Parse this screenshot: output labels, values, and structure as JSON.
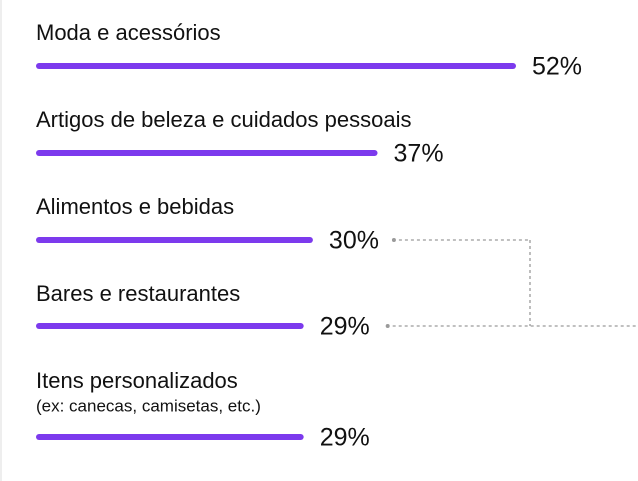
{
  "chart_data": {
    "type": "bar",
    "orientation": "horizontal",
    "categories": [
      "Moda e acessórios",
      "Artigos de beleza e cuidados pessoais",
      "Alimentos e bebidas",
      "Bares e restaurantes",
      "Itens personalizados"
    ],
    "category_notes": [
      "",
      "",
      "",
      "",
      "(ex: canecas, camisetas, etc.)"
    ],
    "values": [
      52,
      37,
      30,
      29,
      29
    ],
    "value_labels": [
      "52%",
      "37%",
      "30%",
      "29%",
      "29%"
    ],
    "xlim": [
      0,
      52
    ],
    "bar_color": "#7c3aed",
    "connector_color": "#9a9a9a",
    "grid": false,
    "legend": "none"
  }
}
